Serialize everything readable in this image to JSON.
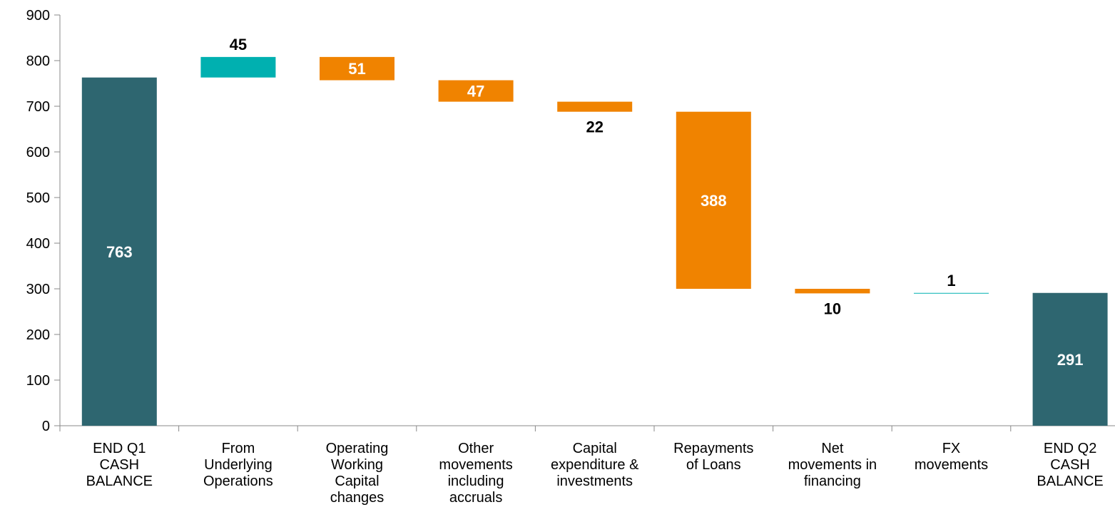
{
  "chart_data": {
    "type": "waterfall",
    "categories": [
      "END Q1\nCASH\nBALANCE",
      "From\nUnderlying\nOperations",
      "Operating\nWorking\nCapital\nchanges",
      "Other\nmovements\nincluding\naccruals",
      "Capital\nexpenditure &\ninvestments",
      "Repayments\nof Loans",
      "Net\nmovements in\nfinancing",
      "FX\nmovements",
      "END Q2\nCASH\nBALANCE"
    ],
    "values": [
      763,
      45,
      -51,
      -47,
      -22,
      -388,
      -10,
      1,
      291
    ],
    "value_labels": [
      "763",
      "45",
      "51",
      "47",
      "22",
      "388",
      "10",
      "1",
      "291"
    ],
    "totals": [
      true,
      false,
      false,
      false,
      false,
      false,
      false,
      false,
      true
    ],
    "colors": [
      "#2e6670",
      "#00b0b0",
      "#f08300",
      "#f08300",
      "#f08300",
      "#f08300",
      "#f08300",
      "#00b0b0",
      "#2e6670"
    ],
    "ylim": [
      0,
      900
    ],
    "yticks": [
      0,
      100,
      200,
      300,
      400,
      500,
      600,
      700,
      800,
      900
    ]
  }
}
